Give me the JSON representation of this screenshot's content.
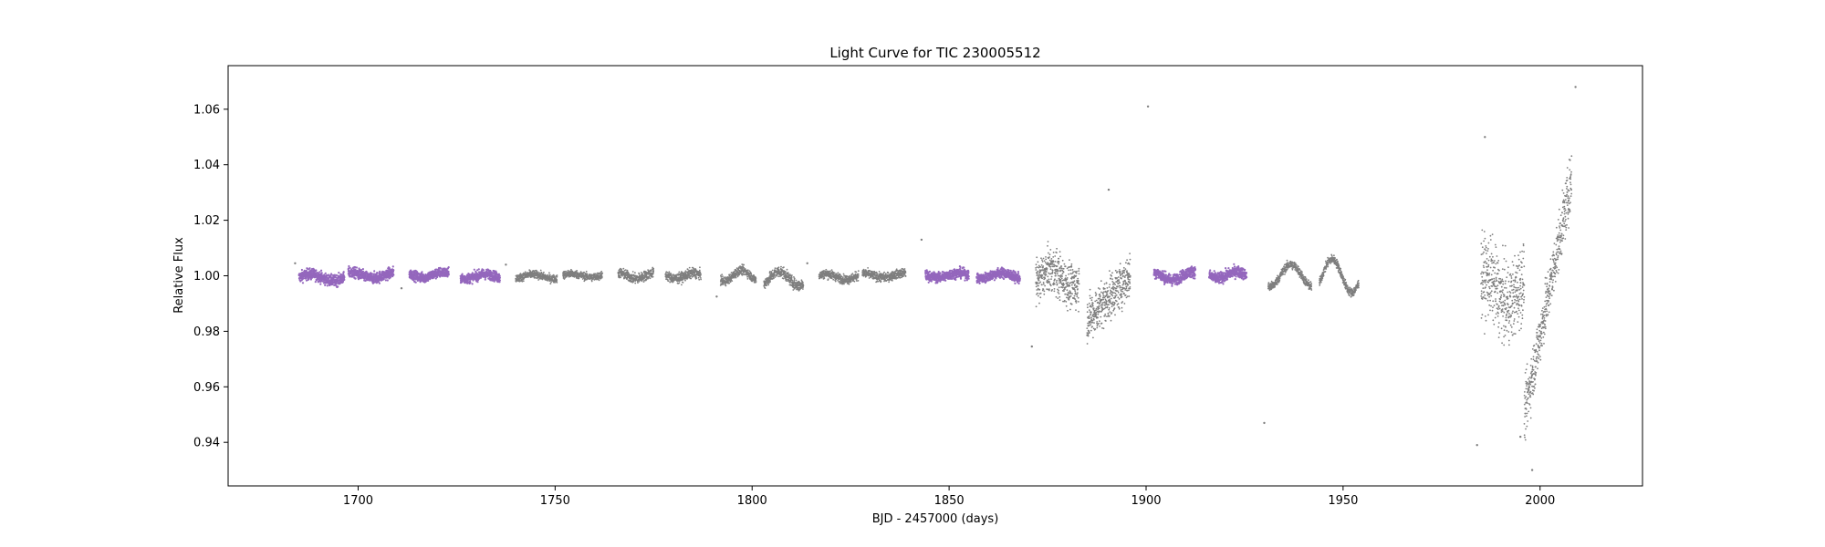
{
  "chart_data": {
    "type": "scatter",
    "title": "Light Curve for TIC 230005512",
    "xlabel": "BJD - 2457000 (days)",
    "ylabel": "Relative Flux",
    "xlim": [
      1667,
      2026
    ],
    "ylim": [
      0.9243,
      1.0757
    ],
    "xticks": [
      1700,
      1750,
      1800,
      1850,
      1900,
      1950,
      2000
    ],
    "yticks": [
      0.94,
      0.96,
      0.98,
      1.0,
      1.02,
      1.04,
      1.06
    ],
    "ytick_labels": [
      "0.94",
      "0.96",
      "0.98",
      "1.00",
      "1.02",
      "1.04",
      "1.06"
    ],
    "grid": false,
    "colors": {
      "highlight": "#9467bd",
      "base": "#7f7f7f"
    },
    "segments": [
      {
        "series": "highlight",
        "x0": 1685.0,
        "x1": 1696.5,
        "center": 0.9994,
        "amp": 0.0012,
        "scatter": 0.001
      },
      {
        "series": "highlight",
        "x0": 1697.5,
        "x1": 1709.0,
        "center": 1.0002,
        "amp": 0.001,
        "scatter": 0.001
      },
      {
        "series": "highlight",
        "x0": 1713.0,
        "x1": 1723.0,
        "center": 1.0003,
        "amp": 0.0009,
        "scatter": 0.0009
      },
      {
        "series": "highlight",
        "x0": 1726.0,
        "x1": 1736.0,
        "center": 0.9998,
        "amp": 0.0008,
        "scatter": 0.0009
      },
      {
        "series": "base",
        "x0": 1740.0,
        "x1": 1750.5,
        "center": 0.9997,
        "amp": 0.0008,
        "scatter": 0.0007
      },
      {
        "series": "base",
        "x0": 1752.0,
        "x1": 1762.0,
        "center": 1.0001,
        "amp": 0.0006,
        "scatter": 0.0007
      },
      {
        "series": "base",
        "x0": 1766.0,
        "x1": 1775.0,
        "center": 1.0,
        "amp": 0.001,
        "scatter": 0.0009
      },
      {
        "series": "base",
        "x0": 1778.0,
        "x1": 1787.0,
        "center": 1.0,
        "amp": 0.001,
        "scatter": 0.0009
      },
      {
        "series": "base",
        "x0": 1792.0,
        "x1": 1801.0,
        "center": 1.0,
        "amp": 0.002,
        "scatter": 0.0008
      },
      {
        "series": "base",
        "x0": 1803.0,
        "x1": 1813.0,
        "center": 0.999,
        "amp": 0.0025,
        "scatter": 0.001
      },
      {
        "series": "base",
        "x0": 1817.0,
        "x1": 1827.0,
        "center": 0.9997,
        "amp": 0.001,
        "scatter": 0.0008
      },
      {
        "series": "base",
        "x0": 1828.0,
        "x1": 1839.0,
        "center": 1.0002,
        "amp": 0.0008,
        "scatter": 0.0008
      },
      {
        "series": "highlight",
        "x0": 1844.0,
        "x1": 1855.0,
        "center": 1.0002,
        "amp": 0.0008,
        "scatter": 0.0009
      },
      {
        "series": "highlight",
        "x0": 1857.0,
        "x1": 1868.0,
        "center": 1.0,
        "amp": 0.001,
        "scatter": 0.0009
      },
      {
        "series": "base",
        "x0": 1872.0,
        "x1": 1883.0,
        "center": 0.999,
        "amp": 0.003,
        "scatter": 0.004
      },
      {
        "series": "base",
        "x0": 1885.0,
        "x1": 1896.0,
        "center": 0.996,
        "amp": 0.006,
        "scatter": 0.004
      },
      {
        "series": "highlight",
        "x0": 1902.0,
        "x1": 1912.5,
        "center": 1.0,
        "amp": 0.0015,
        "scatter": 0.001
      },
      {
        "series": "highlight",
        "x0": 1916.0,
        "x1": 1925.5,
        "center": 1.0003,
        "amp": 0.0012,
        "scatter": 0.001
      },
      {
        "series": "base",
        "x0": 1931.0,
        "x1": 1942.0,
        "center": 1.0,
        "amp": 0.004,
        "scatter": 0.0008
      },
      {
        "series": "base",
        "x0": 1944.0,
        "x1": 1954.0,
        "center": 1.0,
        "amp": 0.006,
        "scatter": 0.0008
      },
      {
        "series": "base",
        "x0": 1985.0,
        "x1": 1996.0,
        "center": 0.995,
        "amp": 0.005,
        "scatter": 0.007
      },
      {
        "series": "base",
        "x0": 1996.0,
        "x1": 2008.0,
        "center": 0.995,
        "amp": 0.03,
        "scatter": 0.005
      }
    ],
    "outliers": [
      [
        1684.0,
        1.0045
      ],
      [
        1711.0,
        0.9955
      ],
      [
        1737.5,
        1.004
      ],
      [
        1791.0,
        0.9925
      ],
      [
        1814.0,
        1.0045
      ],
      [
        1843.0,
        1.013
      ],
      [
        1871.0,
        0.9745
      ],
      [
        1890.5,
        1.031
      ],
      [
        1900.5,
        1.061
      ],
      [
        1930.0,
        0.947
      ],
      [
        1984.0,
        0.939
      ],
      [
        1986.0,
        1.05
      ],
      [
        1995.0,
        0.942
      ],
      [
        1998.0,
        0.93
      ],
      [
        2009.0,
        1.068
      ]
    ]
  }
}
